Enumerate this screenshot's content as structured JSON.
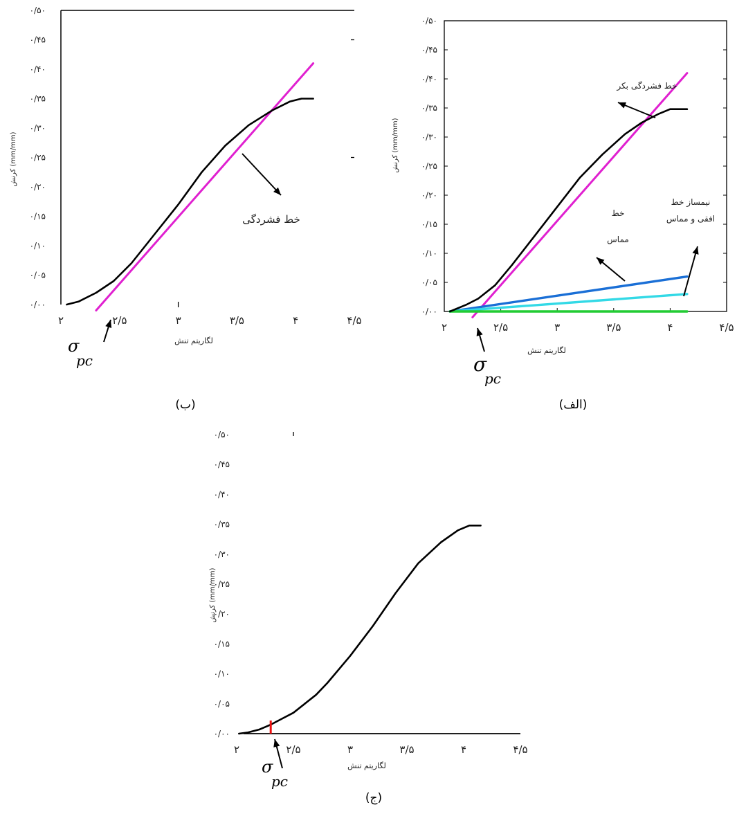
{
  "chart_data": [
    {
      "panel": "alef",
      "caption": "(الف)",
      "type": "line",
      "xlabel": "لگاریتم تنش",
      "ylabel": "کرنش (mm/mm)",
      "xlim": [
        2,
        4.5
      ],
      "ylim": [
        0,
        0.5
      ],
      "x_ticks": [
        "۲",
        "۲/۵",
        "۳",
        "۳/۵",
        "۴",
        "۴/۵"
      ],
      "y_ticks": [
        "۰/۰۰",
        "۰/۰۵",
        "۰/۱۰",
        "۰/۱۵",
        "۰/۲۰",
        "۰/۲۵",
        "۰/۳۰",
        "۰/۳۵",
        "۰/۴۰",
        "۰/۴۵",
        "۰/۵۰"
      ],
      "series": [
        {
          "name": "",
          "color": "#000000",
          "x": [
            2.05,
            2.2,
            2.3,
            2.45,
            2.6,
            2.8,
            3.0,
            3.2,
            3.4,
            3.6,
            3.75,
            3.9,
            4.0,
            4.15
          ],
          "y": [
            0.0,
            0.012,
            0.022,
            0.045,
            0.08,
            0.13,
            0.18,
            0.23,
            0.27,
            0.305,
            0.325,
            0.34,
            0.348,
            0.348
          ]
        },
        {
          "name": "خط فشردگی بکر",
          "color": "#e020d0",
          "x": [
            2.25,
            4.15
          ],
          "y": [
            -0.01,
            0.41
          ]
        },
        {
          "name": "خط مماس",
          "color": "#1a6fd6",
          "x": [
            2.05,
            4.15
          ],
          "y": [
            0.0,
            0.06
          ]
        },
        {
          "name": "نیمساز خط افقی و مماس",
          "color": "#33d9e6",
          "x": [
            2.05,
            4.15
          ],
          "y": [
            0.0,
            0.03
          ]
        },
        {
          "name": "",
          "color": "#22cc33",
          "x": [
            2.05,
            4.15
          ],
          "y": [
            0.0,
            0.0
          ]
        }
      ],
      "annotations": [
        "خط فشردگی بکر",
        "خط مماس",
        "نیمساز خط افقی و مماس",
        "σ",
        "pc"
      ]
    },
    {
      "panel": "be",
      "caption": "(ب)",
      "type": "line",
      "xlabel": "لگاریتم تنش",
      "ylabel": "کرنش (mm/mm)",
      "xlim": [
        2,
        4.5
      ],
      "ylim": [
        0,
        0.5
      ],
      "x_ticks": [
        "۲",
        "۲/۵",
        "۳",
        "۳/۵",
        "۴",
        "۴/۵"
      ],
      "y_ticks": [
        "۰/۰۰",
        "۰/۰۵",
        "۰/۱۰",
        "۰/۱۵",
        "۰/۲۰",
        "۰/۲۵",
        "۰/۳۰",
        "۰/۳۵",
        "۰/۴۰",
        "۰/۴۵",
        "۰/۵۰"
      ],
      "series": [
        {
          "name": "",
          "color": "#000000",
          "x": [
            2.05,
            2.15,
            2.3,
            2.45,
            2.6,
            2.8,
            3.0,
            3.2,
            3.4,
            3.6,
            3.8,
            3.95,
            4.05,
            4.15
          ],
          "y": [
            0.0,
            0.005,
            0.02,
            0.04,
            0.07,
            0.12,
            0.17,
            0.225,
            0.27,
            0.305,
            0.33,
            0.345,
            0.35,
            0.35
          ]
        },
        {
          "name": "خط فشردگی",
          "color": "#e020d0",
          "x": [
            2.3,
            4.15
          ],
          "y": [
            -0.01,
            0.41
          ]
        }
      ],
      "annotations": [
        "خط فشردگی",
        "σ",
        "pc"
      ]
    },
    {
      "panel": "jim",
      "caption": "(ج)",
      "type": "line",
      "xlabel": "لگاریتم تنش",
      "ylabel": "کرنش (mm/mm)",
      "xlim": [
        2,
        4.5
      ],
      "ylim": [
        0,
        0.5
      ],
      "x_ticks": [
        "۲",
        "۲/۵",
        "۳",
        "۳/۵",
        "۴",
        "۴/۵"
      ],
      "y_ticks": [
        "۰/۰۰",
        "۰/۰۵",
        "۰/۱۰",
        "۰/۱۵",
        "۰/۲۰",
        "۰/۲۵",
        "۰/۳۰",
        "۰/۳۵",
        "۰/۴۰",
        "۰/۴۵",
        "۰/۵۰"
      ],
      "series": [
        {
          "name": "",
          "color": "#000000",
          "x": [
            2.02,
            2.1,
            2.2,
            2.3,
            2.4,
            2.5,
            2.6,
            2.7,
            2.8,
            3.0,
            3.2,
            3.4,
            3.6,
            3.8,
            3.95,
            4.05,
            4.15
          ],
          "y": [
            0.0,
            0.002,
            0.007,
            0.015,
            0.025,
            0.035,
            0.05,
            0.065,
            0.085,
            0.13,
            0.18,
            0.235,
            0.285,
            0.32,
            0.34,
            0.348,
            0.348
          ]
        }
      ],
      "markers": [
        {
          "label": "σpc",
          "x": 2.3,
          "y": 0.015,
          "color": "#ee1111"
        }
      ],
      "annotations": [
        "σ",
        "pc"
      ]
    }
  ]
}
